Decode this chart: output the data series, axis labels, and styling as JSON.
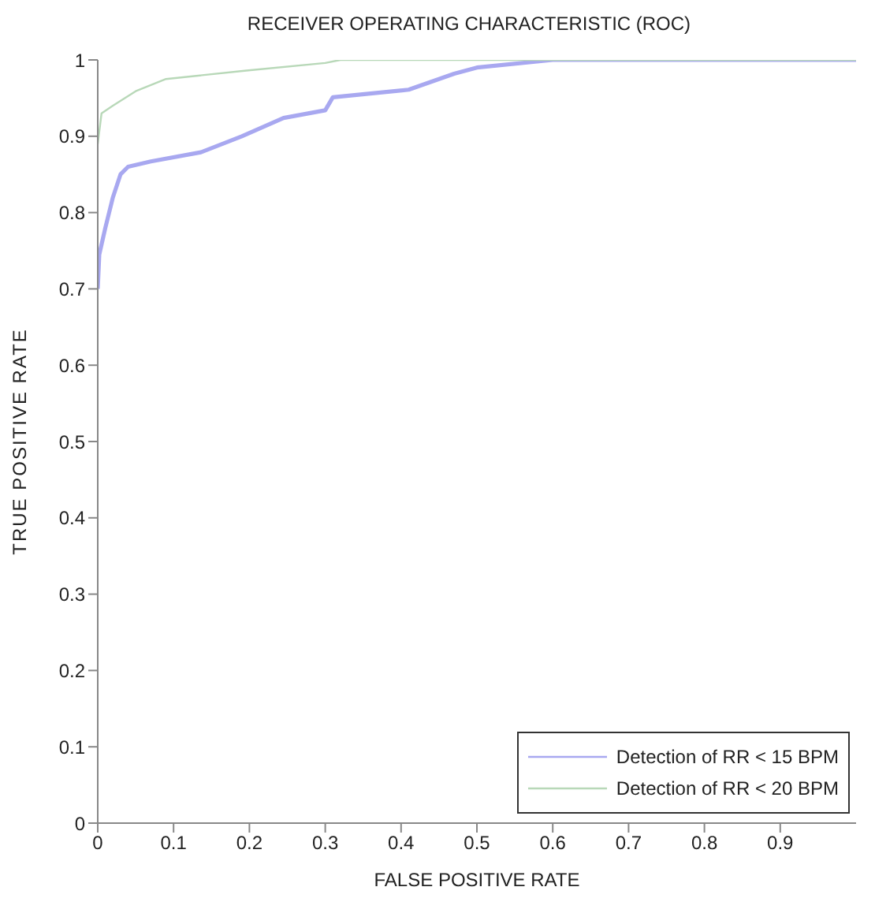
{
  "chart_data": {
    "type": "line",
    "title": "RECEIVER OPERATING CHARACTERISTIC (ROC)",
    "xlabel": "FALSE POSITIVE RATE",
    "ylabel": "TRUE POSITIVE RATE",
    "xlim": [
      0,
      1
    ],
    "xticks": [
      0,
      0.1,
      0.2,
      0.3,
      0.4,
      0.5,
      0.6,
      0.7,
      0.8,
      0.9
    ],
    "ylim": [
      0,
      1
    ],
    "yticks": [
      0,
      0.1,
      0.2,
      0.3,
      0.4,
      0.5,
      0.6,
      0.7,
      0.8,
      0.9,
      1
    ],
    "legend": "bottom right",
    "marker": "none",
    "line_style": "solid",
    "series": [
      {
        "name": "Detection of RR < 15 BPM",
        "color": "#a8a8f0",
        "x": [
          0,
          0.002,
          0.01,
          0.02,
          0.03,
          0.04,
          0.07,
          0.136,
          0.19,
          0.245,
          0.3,
          0.31,
          0.41,
          0.47,
          0.5,
          0.6,
          1
        ],
        "values": [
          0.7,
          0.745,
          0.78,
          0.82,
          0.85,
          0.86,
          0.867,
          0.879,
          0.9,
          0.924,
          0.934,
          0.951,
          0.961,
          0.982,
          0.99,
          1,
          1
        ]
      },
      {
        "name": "Detection of RR < 20 BPM",
        "color": "#b8d8b8",
        "x": [
          0,
          0.005,
          0.02,
          0.05,
          0.09,
          0.196,
          0.3,
          0.32,
          1
        ],
        "values": [
          0.89,
          0.93,
          0.94,
          0.959,
          0.975,
          0.986,
          0.996,
          1,
          1
        ]
      }
    ]
  }
}
